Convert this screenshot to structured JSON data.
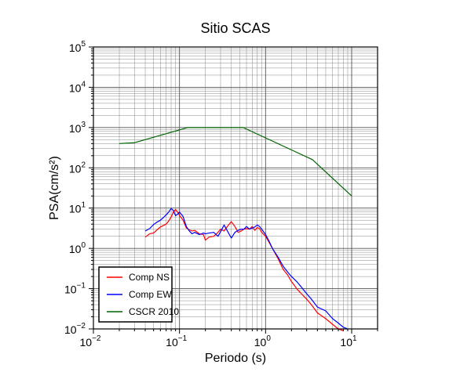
{
  "chart_data": {
    "type": "line",
    "title": "Sitio SCAS",
    "xlabel": "Periodo (s)",
    "ylabel": "PSA(cm/s²)",
    "xscale": "log",
    "yscale": "log",
    "xlim": [
      0.01,
      20
    ],
    "ylim": [
      0.01,
      100000
    ],
    "grid": true,
    "legend_position": "bottom-left",
    "x_ticks": [
      {
        "base": "10",
        "exp": "−2",
        "value": 0.01
      },
      {
        "base": "10",
        "exp": "−1",
        "value": 0.1
      },
      {
        "base": "10",
        "exp": "0",
        "value": 1
      },
      {
        "base": "10",
        "exp": "1",
        "value": 10
      }
    ],
    "y_ticks": [
      {
        "base": "10",
        "exp": "−2",
        "value": 0.01
      },
      {
        "base": "10",
        "exp": "−1",
        "value": 0.1
      },
      {
        "base": "10",
        "exp": "0",
        "value": 1
      },
      {
        "base": "10",
        "exp": "1",
        "value": 10
      },
      {
        "base": "10",
        "exp": "2",
        "value": 100
      },
      {
        "base": "10",
        "exp": "3",
        "value": 1000
      },
      {
        "base": "10",
        "exp": "4",
        "value": 10000
      },
      {
        "base": "10",
        "exp": "5",
        "value": 100000
      }
    ],
    "series": [
      {
        "name": "Comp NS",
        "color": "#ff0000",
        "x": [
          0.04,
          0.045,
          0.05,
          0.055,
          0.06,
          0.065,
          0.07,
          0.075,
          0.08,
          0.085,
          0.09,
          0.095,
          0.1,
          0.11,
          0.12,
          0.13,
          0.14,
          0.15,
          0.17,
          0.19,
          0.2,
          0.22,
          0.25,
          0.28,
          0.3,
          0.33,
          0.36,
          0.4,
          0.44,
          0.48,
          0.52,
          0.56,
          0.6,
          0.65,
          0.7,
          0.75,
          0.8,
          0.85,
          0.9,
          1.0,
          1.1,
          1.2,
          1.4,
          1.6,
          1.8,
          2.0,
          2.3,
          2.6,
          3.0,
          3.4,
          4.0,
          5.0,
          6.0,
          7.0,
          8.0
        ],
        "y": [
          1.9,
          2.3,
          2.4,
          2.9,
          3.4,
          3.7,
          4.0,
          4.8,
          6.0,
          8.0,
          9.2,
          8.0,
          6.6,
          5.0,
          3.2,
          2.9,
          2.7,
          2.8,
          2.3,
          2.2,
          1.6,
          1.9,
          2.0,
          2.5,
          3.0,
          2.7,
          3.5,
          4.6,
          3.5,
          2.5,
          2.7,
          3.0,
          3.1,
          3.0,
          3.5,
          2.8,
          3.3,
          3.1,
          2.5,
          2.0,
          1.4,
          1.0,
          0.55,
          0.3,
          0.22,
          0.15,
          0.1,
          0.075,
          0.055,
          0.04,
          0.025,
          0.018,
          0.013,
          0.01,
          0.009
        ]
      },
      {
        "name": "Comp EW",
        "color": "#0000ff",
        "x": [
          0.04,
          0.045,
          0.05,
          0.055,
          0.06,
          0.065,
          0.07,
          0.075,
          0.08,
          0.085,
          0.09,
          0.095,
          0.1,
          0.11,
          0.12,
          0.13,
          0.14,
          0.15,
          0.17,
          0.19,
          0.2,
          0.22,
          0.25,
          0.28,
          0.3,
          0.33,
          0.36,
          0.4,
          0.44,
          0.48,
          0.52,
          0.56,
          0.6,
          0.65,
          0.7,
          0.75,
          0.8,
          0.85,
          0.9,
          1.0,
          1.1,
          1.2,
          1.4,
          1.6,
          1.8,
          2.0,
          2.3,
          2.6,
          3.0,
          3.4,
          4.0,
          5.0,
          6.0,
          7.0,
          8.0,
          9.0
        ],
        "y": [
          2.7,
          3.1,
          3.9,
          4.5,
          5.0,
          5.8,
          6.8,
          8.0,
          9.8,
          8.7,
          6.5,
          7.0,
          8.0,
          6.2,
          3.5,
          2.7,
          2.3,
          2.5,
          2.2,
          2.4,
          2.3,
          2.4,
          2.5,
          2.0,
          2.6,
          3.8,
          2.7,
          1.8,
          2.5,
          2.8,
          3.0,
          3.0,
          3.5,
          3.0,
          3.2,
          3.4,
          3.8,
          3.5,
          3.0,
          2.2,
          1.5,
          1.0,
          0.6,
          0.36,
          0.26,
          0.2,
          0.15,
          0.11,
          0.075,
          0.055,
          0.035,
          0.028,
          0.018,
          0.014,
          0.011,
          0.01
        ]
      },
      {
        "name": "CSCR 2010",
        "color": "#006400",
        "x": [
          0.02,
          0.03,
          0.125,
          0.55,
          3.5,
          10
        ],
        "y": [
          400,
          420,
          1000,
          1000,
          160,
          20
        ]
      }
    ]
  }
}
